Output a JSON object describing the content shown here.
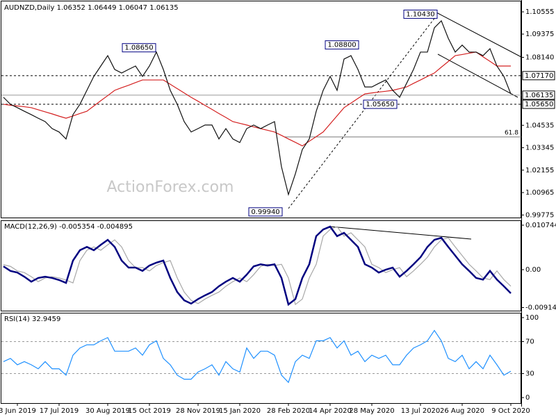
{
  "chart_data": [
    {
      "type": "line",
      "title": "AUDNZD,Daily",
      "ohlc": [
        1.06352,
        1.06449,
        1.06047,
        1.06135
      ],
      "watermark": "ActionForex.com",
      "categories": [
        null,
        null,
        "3 Jun 2019",
        null,
        null,
        null,
        null,
        null,
        "17 Jul 2019",
        null,
        null,
        null,
        null,
        null,
        null,
        "30 Aug 2019",
        null,
        null,
        null,
        null,
        null,
        "15 Oct 2019",
        null,
        null,
        null,
        null,
        null,
        null,
        "28 Nov 2019",
        null,
        null,
        null,
        null,
        null,
        "15 Jan 2020",
        null,
        null,
        null,
        null,
        null,
        null,
        "28 Feb 2020",
        null,
        null,
        null,
        null,
        null,
        "14 Apr 2020",
        null,
        null,
        null,
        null,
        null,
        "28 May 2020",
        null,
        null,
        null,
        null,
        null,
        null,
        "13 Jul 2020",
        null,
        null,
        null,
        null,
        null,
        "26 Aug 2020",
        null,
        null,
        null,
        null,
        null,
        null,
        "9 Oct 2020"
      ],
      "series": [
        {
          "color": "#101010",
          "values": [
            1.0602,
            1.0565,
            1.0547,
            1.0528,
            1.051,
            1.0491,
            1.0473,
            1.0436,
            1.0418,
            1.0381,
            1.051,
            1.0565,
            1.0639,
            1.0713,
            1.0768,
            1.0823,
            1.075,
            1.0731,
            1.075,
            1.0768,
            1.0713,
            1.0768,
            1.0842,
            1.075,
            1.0639,
            1.0565,
            1.0473,
            1.0418,
            1.0436,
            1.0455,
            1.0455,
            1.0381,
            1.0436,
            1.0381,
            1.0362,
            1.0436,
            1.0455,
            1.0436,
            1.0455,
            1.0473,
            1.0233,
            1.0086,
            1.0196,
            1.0325,
            1.0381,
            1.0528,
            1.0639,
            1.0713,
            1.0639,
            1.0805,
            1.0823,
            1.075,
            1.0657,
            1.0657,
            1.0676,
            1.0694,
            1.0639,
            1.0602,
            1.0676,
            1.075,
            1.0842,
            1.0842,
            1.0971,
            1.1008,
            1.0915,
            1.0842,
            1.0879,
            1.0842,
            1.0842,
            1.0823,
            1.086,
            1.0768,
            1.0713,
            1.062
          ]
        },
        {
          "color": "#d42020",
          "values": [
            1.0565,
            1.056,
            1.0556,
            1.0552,
            1.0547,
            1.0536,
            1.0525,
            1.0514,
            1.0502,
            1.0491,
            1.0503,
            1.0516,
            1.0528,
            1.0556,
            1.0584,
            1.0611,
            1.0639,
            1.0653,
            1.0666,
            1.068,
            1.0694,
            1.0694,
            1.0694,
            1.0694,
            1.0671,
            1.0648,
            1.0625,
            1.0602,
            1.0581,
            1.0559,
            1.0538,
            1.0516,
            1.0495,
            1.0473,
            1.0464,
            1.0455,
            1.0445,
            1.0436,
            1.0427,
            1.0418,
            1.04,
            1.0381,
            1.0363,
            1.0344,
            1.0369,
            1.0393,
            1.0418,
            1.0461,
            1.0504,
            1.0547,
            1.0571,
            1.0596,
            1.062,
            1.0625,
            1.063,
            1.0634,
            1.0639,
            1.0648,
            1.0657,
            1.0676,
            1.0694,
            1.0713,
            1.0731,
            1.0762,
            1.0792,
            1.0823,
            1.0829,
            1.0836,
            1.0842,
            1.0817,
            1.0793,
            1.0768,
            1.0768,
            1.0768
          ]
        }
      ],
      "ylim": [
        0.9964,
        1.1111
      ],
      "yticks": [
        1.10555,
        1.09375,
        {
          "value": 1.0814,
          "label": "1.08140"
        },
        1.04535,
        1.03345,
        1.02155,
        1.00965,
        0.99775
      ],
      "levels": [
        {
          "value": 1.0717,
          "label": "1.07170",
          "style": "dashed"
        },
        {
          "value": 1.06135,
          "label": "1.06135",
          "style": "solid"
        },
        {
          "value": 1.0565,
          "label": "1.05650",
          "style": "dashed"
        }
      ],
      "fib": {
        "ratio": 61.8,
        "price": 1.0392
      },
      "annotations": [
        {
          "value": 1.0865,
          "label": "1.08650"
        },
        {
          "value": 1.1043,
          "label": "1.10430"
        },
        {
          "value": 1.088,
          "label": "1.08800"
        },
        {
          "value": 0.9994,
          "label": "0.99940"
        },
        {
          "value": 1.0565,
          "label": "1.05650"
        }
      ]
    },
    {
      "type": "line",
      "title": "MACD(12,26,9)",
      "readout": [
        -0.005354,
        -0.004895
      ],
      "series": [
        {
          "color": "#000080",
          "values": [
            0.0008,
            -0.0003,
            -0.0007,
            -0.0017,
            -0.0029,
            -0.002,
            -0.0017,
            -0.002,
            -0.0025,
            -0.0032,
            0.0022,
            0.0047,
            0.0055,
            0.0047,
            0.006,
            0.0072,
            0.0055,
            0.0022,
            0.0005,
            0.0005,
            -0.0003,
            0.001,
            0.0017,
            0.0022,
            -0.002,
            -0.0054,
            -0.0074,
            -0.0082,
            -0.0071,
            -0.0062,
            -0.0054,
            -0.004,
            -0.0029,
            -0.002,
            -0.0029,
            -0.0012,
            0.0008,
            0.0013,
            0.001,
            0.0013,
            -0.002,
            -0.0084,
            -0.0071,
            -0.002,
            0.0013,
            0.0081,
            0.0097,
            0.0104,
            0.0081,
            0.0089,
            0.0072,
            0.0055,
            0.0013,
            0.0005,
            -0.0007,
            0,
            0.0005,
            -0.0017,
            -0.0003,
            0.0013,
            0.003,
            0.0055,
            0.0072,
            0.0077,
            0.0055,
            0.0034,
            0.0013,
            -0.0003,
            -0.002,
            -0.0024,
            -0.0003,
            -0.0024,
            -0.004,
            -0.0057
          ]
        },
        {
          "color": "#a8a8a8",
          "values": [
            0.0012,
            0.0008,
            -0.0003,
            -0.0007,
            -0.0017,
            -0.0029,
            -0.002,
            -0.0017,
            -0.002,
            -0.0025,
            -0.0032,
            0.0022,
            0.0047,
            0.0055,
            0.0047,
            0.006,
            0.0072,
            0.0055,
            0.0022,
            0.0005,
            0.0005,
            -0.0003,
            0.001,
            0.0017,
            0.0022,
            -0.002,
            -0.0054,
            -0.0074,
            -0.0082,
            -0.0071,
            -0.0062,
            -0.0054,
            -0.004,
            -0.0029,
            -0.002,
            -0.0029,
            -0.0012,
            0.0008,
            0.0013,
            0.001,
            0.0013,
            -0.002,
            -0.0084,
            -0.0071,
            -0.002,
            0.0013,
            0.0081,
            0.0097,
            0.0104,
            0.0081,
            0.0089,
            0.0072,
            0.0055,
            0.0013,
            0.0005,
            -0.0007,
            0,
            0.0005,
            -0.0017,
            -0.0003,
            0.0013,
            0.003,
            0.0055,
            0.0072,
            0.0077,
            0.0055,
            0.0034,
            0.0013,
            -0.0003,
            -0.002,
            -0.0024,
            -0.0003,
            -0.0024,
            -0.004
          ]
        }
      ],
      "ylim": [
        -0.0099,
        0.01175
      ],
      "yticks": [
        0.010744,
        {
          "value": 0,
          "label": "0.00"
        },
        -0.009148
      ]
    },
    {
      "type": "line",
      "title": "RSI(14)",
      "readout": [
        32.9459
      ],
      "series": [
        {
          "color": "#1e90ff",
          "values": [
            45,
            49,
            41,
            45,
            41,
            36,
            45,
            36,
            36,
            28,
            53,
            62,
            66,
            66,
            71,
            75,
            58,
            58,
            58,
            62,
            53,
            66,
            71,
            49,
            41,
            28,
            23,
            23,
            32,
            36,
            41,
            28,
            45,
            36,
            32,
            62,
            49,
            58,
            58,
            53,
            28,
            19,
            45,
            53,
            49,
            71,
            71,
            75,
            62,
            71,
            53,
            58,
            45,
            53,
            49,
            53,
            41,
            41,
            53,
            62,
            66,
            71,
            84,
            71,
            49,
            45,
            53,
            36,
            45,
            36,
            53,
            41,
            28,
            33
          ]
        }
      ],
      "ylim": [
        -6.9,
        105.2
      ],
      "yticks": [
        100,
        70,
        30,
        0
      ],
      "levels": [
        70,
        30
      ]
    }
  ]
}
